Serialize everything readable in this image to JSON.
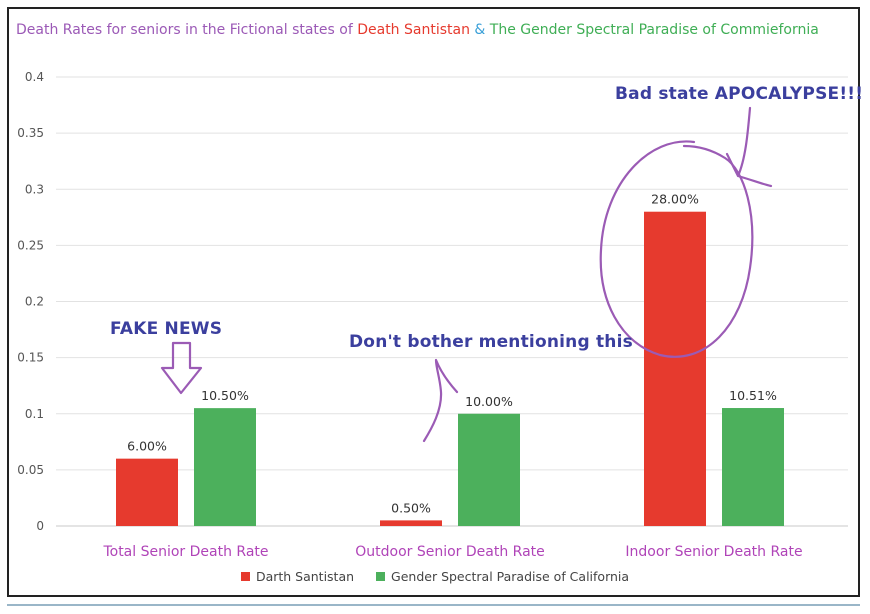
{
  "title": {
    "prefix": "Death Rates for seniors in the Fictional states of ",
    "state_red": "Death Santistan",
    "amp": " & ",
    "state_green": "The Gender Spectral Paradise of Commiefornia"
  },
  "annotations": {
    "fake_news": "FAKE NEWS",
    "dont_bother": "Don't bother mentioning this",
    "apocalypse": "Bad state APOCALYPSE!!!"
  },
  "colors": {
    "red": "#e63a2e",
    "green": "#4cb05c",
    "category_label": "#b044b8",
    "annotation": "#3b3f9e",
    "ink": "#9b5bb5"
  },
  "chart_data": {
    "type": "bar",
    "categories": [
      "Total Senior Death Rate",
      "Outdoor Senior Death Rate",
      "Indoor Senior Death Rate"
    ],
    "series": [
      {
        "name": "Darth Santistan",
        "values": [
          0.06,
          0.005,
          0.28
        ],
        "labels": [
          "6.00%",
          "0.50%",
          "28.00%"
        ],
        "color": "#e63a2e"
      },
      {
        "name": "Gender Spectral Paradise of California",
        "values": [
          0.105,
          0.1,
          0.1051
        ],
        "labels": [
          "10.50%",
          "10.00%",
          "10.51%"
        ],
        "color": "#4cb05c"
      }
    ],
    "yticks": [
      "0",
      "0.05",
      "0.1",
      "0.15",
      "0.2",
      "0.25",
      "0.3",
      "0.35",
      "0.4"
    ],
    "ylim": [
      0,
      0.4
    ],
    "grid": true,
    "legend": "bottom"
  }
}
